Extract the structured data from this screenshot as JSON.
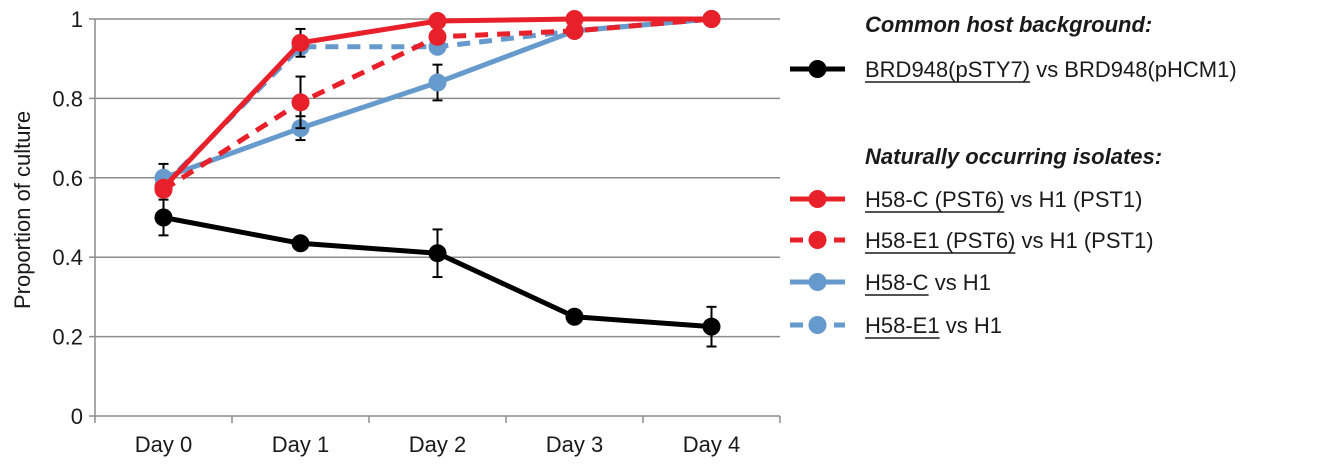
{
  "chart_data": {
    "type": "line",
    "title": "",
    "xlabel": "",
    "ylabel": "Proportion of culture",
    "categories": [
      "Day 0",
      "Day 1",
      "Day 2",
      "Day 3",
      "Day 4"
    ],
    "yticks": [
      "0",
      "0.2",
      "0.4",
      "0.6",
      "0.8",
      "1"
    ],
    "ylim": [
      0,
      1
    ],
    "grid": "horizontal",
    "legend_position": "right",
    "legend_groups": [
      {
        "heading": "Common host background:",
        "entries": [
          {
            "series_index": 0,
            "label_underlined": "BRD948(pSTY7)",
            "label_rest": " vs BRD948(pHCM1)"
          }
        ]
      },
      {
        "heading": "Naturally occurring isolates:",
        "entries": [
          {
            "series_index": 1,
            "label_underlined": "H58-C (PST6)",
            "label_rest": " vs H1 (PST1)"
          },
          {
            "series_index": 2,
            "label_underlined": "H58-E1 (PST6)",
            "label_rest": " vs H1 (PST1)"
          },
          {
            "series_index": 3,
            "label_underlined": "H58-C",
            "label_rest": " vs H1"
          },
          {
            "series_index": 4,
            "label_underlined": "H58-E1",
            "label_rest": " vs H1"
          }
        ]
      }
    ],
    "series": [
      {
        "name": "BRD948(pSTY7) vs BRD948(pHCM1)",
        "color": "#000000",
        "dashed": false,
        "values": [
          0.5,
          0.435,
          0.41,
          0.25,
          0.225
        ],
        "errors": [
          0.045,
          0.0,
          0.06,
          0.0,
          0.05
        ]
      },
      {
        "name": "H58-C (PST6) vs H1 (PST1)",
        "color": "#e8202a",
        "dashed": false,
        "values": [
          0.575,
          0.94,
          0.995,
          1.0,
          1.0
        ],
        "errors": [
          0.0,
          0.035,
          0.0,
          0.0,
          0.0
        ]
      },
      {
        "name": "H58-E1 (PST6) vs H1 (PST1)",
        "color": "#e8202a",
        "dashed": true,
        "values": [
          0.57,
          0.79,
          0.955,
          0.97,
          1.0
        ],
        "errors": [
          0.0,
          0.065,
          0.0,
          0.0,
          0.0
        ]
      },
      {
        "name": "H58-C vs H1",
        "color": "#6699cc",
        "dashed": false,
        "values": [
          0.6,
          0.725,
          0.84,
          0.97,
          1.0
        ],
        "errors": [
          0.035,
          0.03,
          0.045,
          0.015,
          0.0
        ]
      },
      {
        "name": "H58-E1 vs H1",
        "color": "#6699cc",
        "dashed": true,
        "values": [
          0.58,
          0.93,
          0.93,
          0.97,
          1.0
        ],
        "errors": [
          0.0,
          0.0,
          0.0,
          0.0,
          0.0
        ]
      }
    ]
  }
}
